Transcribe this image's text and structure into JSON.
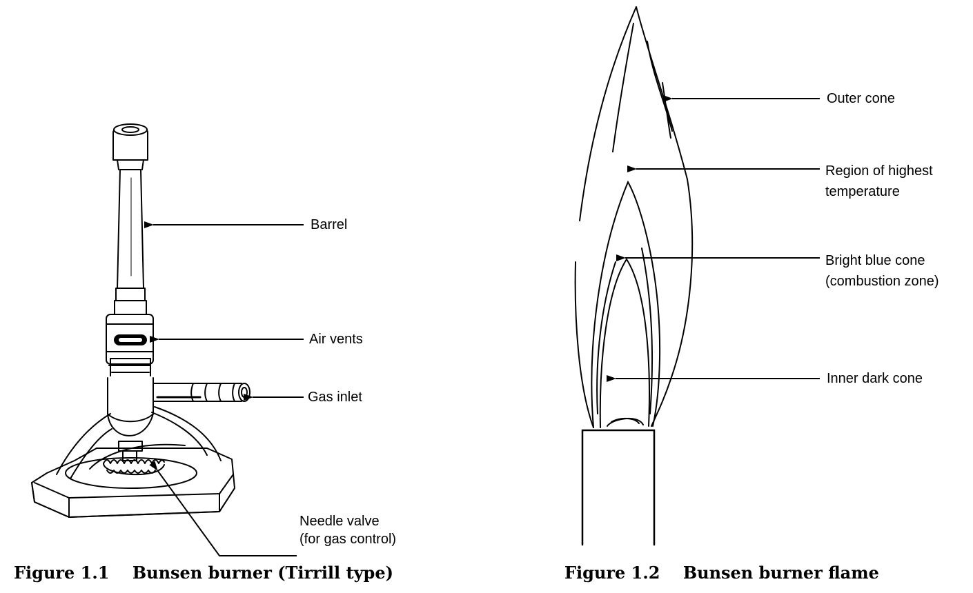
{
  "figure1": {
    "caption": "Figure 1.1    Bunsen burner (Tirrill type)",
    "labels": {
      "barrel": "Barrel",
      "air_vents": "Air vents",
      "gas_inlet": "Gas inlet",
      "needle_valve_line1": "Needle valve",
      "needle_valve_line2": "(for gas control)"
    }
  },
  "figure2": {
    "caption": "Figure 1.2    Bunsen burner flame",
    "labels": {
      "outer_cone": "Outer cone",
      "highest_temp_line1": "Region of highest",
      "highest_temp_line2": "temperature",
      "blue_cone_line1": "Bright blue cone",
      "blue_cone_line2": "(combustion zone)",
      "inner_cone": "Inner dark cone"
    }
  },
  "colors": {
    "ink": "#000000",
    "background": "#ffffff"
  }
}
